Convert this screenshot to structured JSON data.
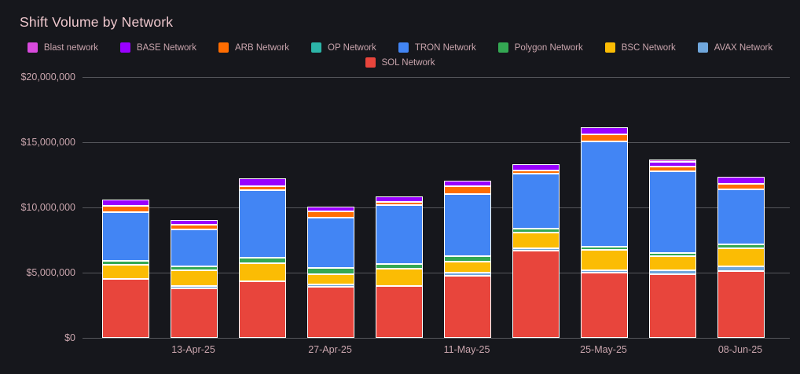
{
  "page": {
    "background": "#16171c",
    "grid_color": "#55565b",
    "text_color": "#c9a5ad",
    "title_color": "#eec7cd",
    "bar_border_color": "#ffffff"
  },
  "chart_data": {
    "type": "bar",
    "stacked": true,
    "title": "Shift Volume by Network",
    "xlabel": "",
    "ylabel": "",
    "ylim": [
      0,
      20000000
    ],
    "y_ticks": [
      "$20,000,000",
      "$15,000,000",
      "$10,000,000",
      "$5,000,000",
      "$0"
    ],
    "grid": true,
    "legend_position": "top",
    "legend_rows": [
      [
        "Blast network",
        "BASE Network",
        "ARB Network",
        "OP Network",
        "TRON Network",
        "Polygon Network",
        "BSC Network",
        "AVAX Network"
      ],
      [
        "SOL Network"
      ]
    ],
    "categories": [
      "",
      "13-Apr-25",
      "",
      "27-Apr-25",
      "",
      "11-May-25",
      "",
      "25-May-25",
      "",
      "08-Jun-25"
    ],
    "series": [
      {
        "name": "SOL Network",
        "color": "#e8453c",
        "values": [
          4600000,
          3850000,
          4400000,
          3950000,
          4050000,
          4850000,
          6750000,
          5050000,
          4950000,
          5200000
        ]
      },
      {
        "name": "AVAX Network",
        "color": "#70a7dc",
        "values": [
          0,
          100000,
          0,
          120000,
          0,
          250000,
          200000,
          180000,
          350000,
          380000
        ]
      },
      {
        "name": "BSC Network",
        "color": "#fbbc04",
        "values": [
          1100000,
          1250000,
          1450000,
          900000,
          1400000,
          950000,
          1250000,
          1650000,
          1150000,
          1450000
        ]
      },
      {
        "name": "Polygon Network",
        "color": "#34a853",
        "values": [
          400000,
          400000,
          500000,
          500000,
          400000,
          450000,
          350000,
          320000,
          320000,
          400000
        ]
      },
      {
        "name": "TRON Network",
        "color": "#4285f4",
        "values": [
          3800000,
          2900000,
          5200000,
          3950000,
          4600000,
          4800000,
          4300000,
          8100000,
          6300000,
          4250000
        ]
      },
      {
        "name": "OP Network",
        "color": "#2cb5a8",
        "values": [
          0,
          0,
          0,
          0,
          0,
          0,
          0,
          0,
          0,
          0
        ]
      },
      {
        "name": "ARB Network",
        "color": "#ff6d01",
        "values": [
          550000,
          400000,
          400000,
          550000,
          300000,
          700000,
          300000,
          600000,
          450000,
          500000
        ]
      },
      {
        "name": "BASE Network",
        "color": "#9900ff",
        "values": [
          500000,
          450000,
          650000,
          420000,
          450000,
          500000,
          550000,
          620000,
          400000,
          600000
        ]
      },
      {
        "name": "Blast network",
        "color": "#d84add",
        "values": [
          0,
          0,
          0,
          0,
          0,
          0,
          0,
          0,
          130000,
          0
        ]
      }
    ]
  }
}
